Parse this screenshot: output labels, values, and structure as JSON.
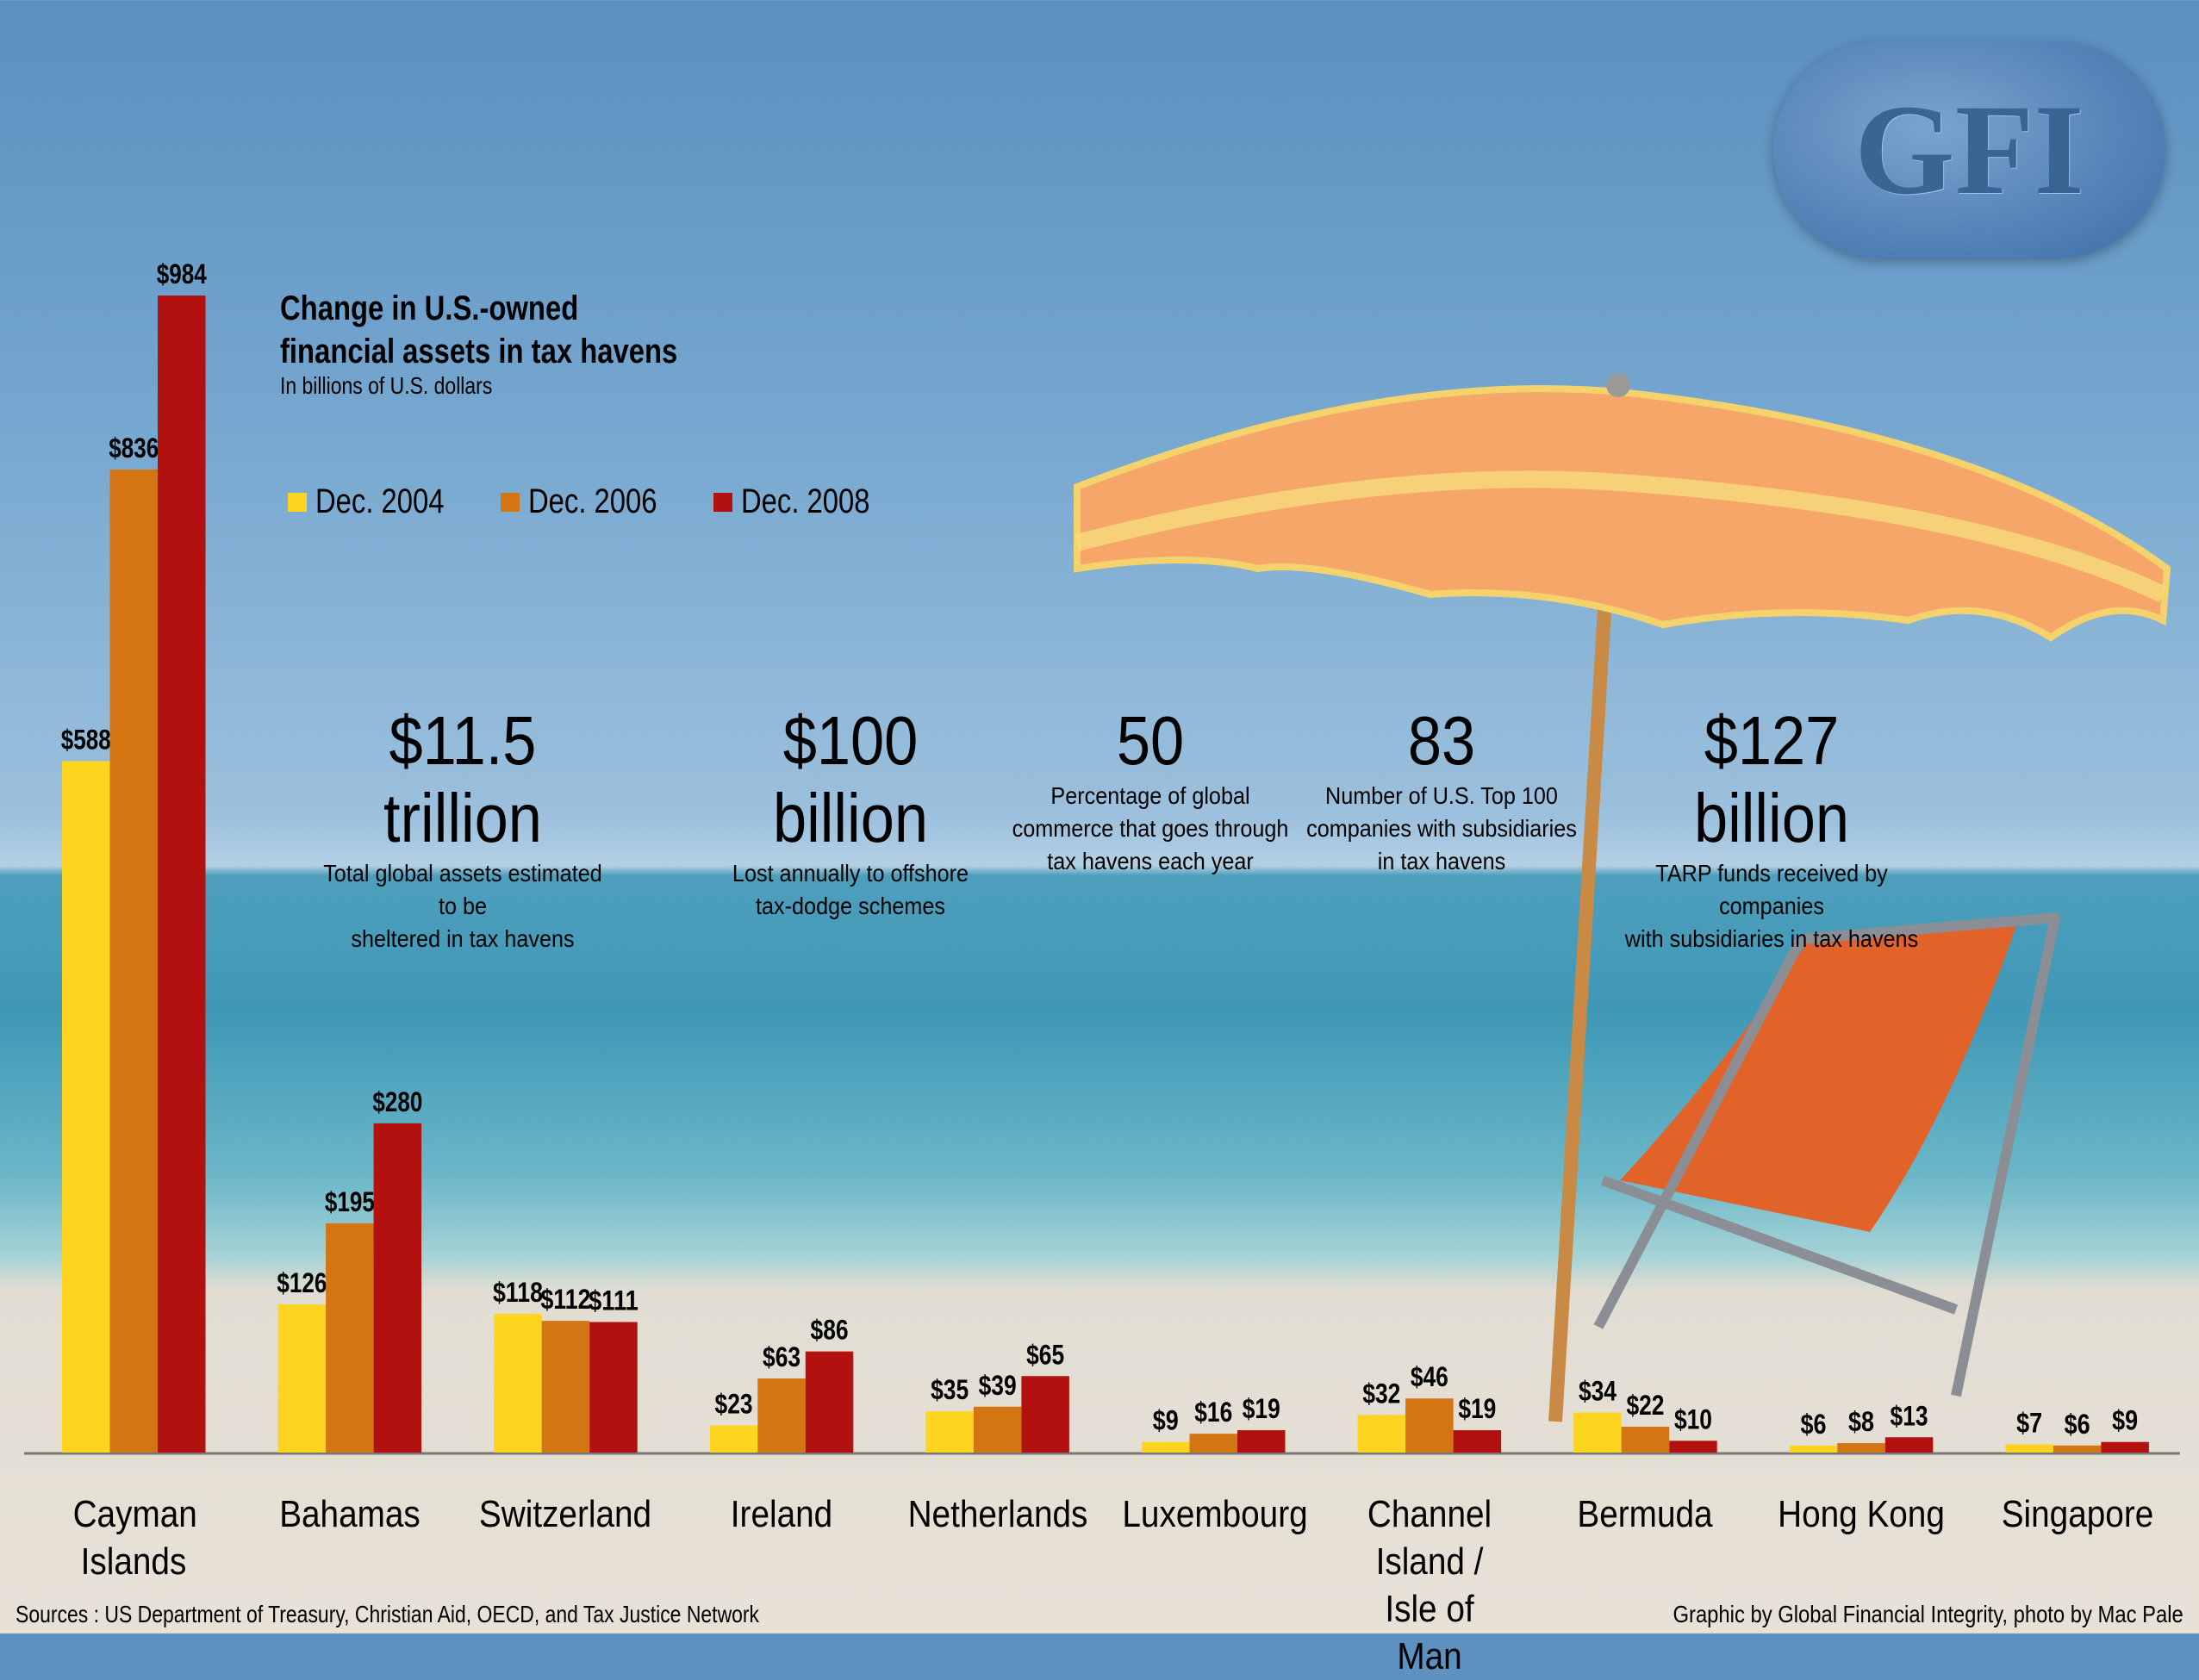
{
  "logo_text": "GFI",
  "chart_data": {
    "type": "bar",
    "title": "Change in U.S.-owned financial assets in tax havens",
    "title_lines": [
      "Change in U.S.-owned",
      "financial assets in tax havens"
    ],
    "subtitle": "In billions of U.S. dollars",
    "legend_placement": "top-left",
    "grid": false,
    "ylim": [
      0,
      984
    ],
    "categories": [
      "Cayman Islands",
      "Bahamas",
      "Switzerland",
      "Ireland",
      "Netherlands",
      "Luxembourg",
      "Channel Island / Isle of Man",
      "Bermuda",
      "Hong Kong",
      "Singapore"
    ],
    "series": [
      {
        "name": "Dec. 2004",
        "color": "#fdd41f",
        "values": [
          588,
          126,
          118,
          23,
          35,
          9,
          32,
          34,
          6,
          7
        ]
      },
      {
        "name": "Dec. 2006",
        "color": "#d27512",
        "values": [
          836,
          195,
          112,
          63,
          39,
          16,
          46,
          22,
          8,
          6
        ]
      },
      {
        "name": "Dec. 2008",
        "color": "#b31010",
        "values": [
          984,
          280,
          111,
          86,
          65,
          19,
          19,
          10,
          13,
          9
        ]
      }
    ],
    "value_prefix": "$"
  },
  "stats": [
    {
      "value": "$11.5 trillion",
      "desc": [
        "Total global assets estimated to be",
        "sheltered in tax havens"
      ]
    },
    {
      "value": "$100 billion",
      "desc": [
        "Lost annually to offshore",
        "tax-dodge schemes"
      ]
    },
    {
      "value": "50",
      "desc": [
        "Percentage of global",
        "commerce that goes through",
        "tax havens each year"
      ]
    },
    {
      "value": "83",
      "desc": [
        "Number of U.S. Top 100",
        "companies with subsidiaries",
        "in tax havens"
      ]
    },
    {
      "value": "$127 billion",
      "desc": [
        "TARP funds received by companies",
        "with subsidiaries in tax havens"
      ]
    }
  ],
  "footer": {
    "sources": "Sources :  US Department of Treasury, Christian Aid, OECD, and Tax Justice Network",
    "credit": "Graphic by Global Financial Integrity, photo by Mac Pale"
  }
}
